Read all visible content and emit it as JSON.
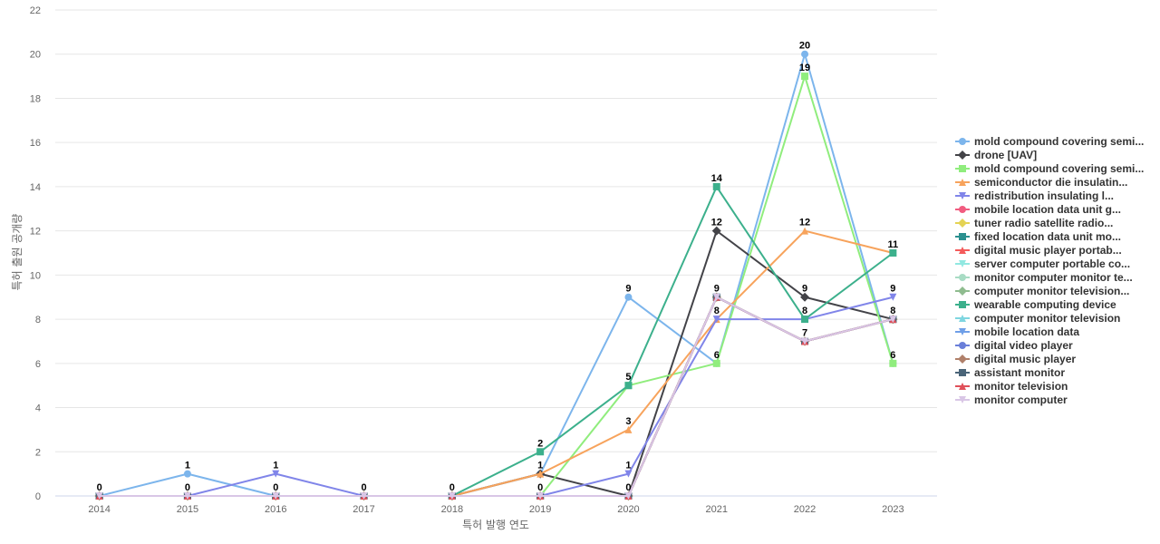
{
  "chart_data": {
    "type": "line",
    "xlabel": "특허 발행 연도",
    "ylabel": "특허 출원 공개량",
    "ylim": [
      0,
      22
    ],
    "yticks": [
      "0",
      "2",
      "4",
      "6",
      "8",
      "10",
      "12",
      "14",
      "16",
      "18",
      "20",
      "22"
    ],
    "categories": [
      "2014",
      "2015",
      "2016",
      "2017",
      "2018",
      "2019",
      "2020",
      "2021",
      "2022",
      "2023"
    ],
    "grid": true,
    "legend_position": "right",
    "series": [
      {
        "name": "mold compound covering semi...",
        "color": "#7cb5ec",
        "marker": "circle",
        "values": [
          0,
          1,
          0,
          0,
          0,
          1,
          9,
          6,
          20,
          6
        ]
      },
      {
        "name": "drone [UAV]",
        "color": "#434348",
        "marker": "diamond",
        "values": [
          0,
          0,
          0,
          0,
          0,
          1,
          0,
          12,
          9,
          8
        ]
      },
      {
        "name": "mold compound covering semi...",
        "color": "#90ed7d",
        "marker": "square",
        "values": [
          0,
          0,
          0,
          0,
          0,
          0,
          5,
          6,
          19,
          6
        ]
      },
      {
        "name": "semiconductor die insulatin...",
        "color": "#f7a35c",
        "marker": "triangle",
        "values": [
          0,
          0,
          0,
          0,
          0,
          1,
          3,
          8,
          12,
          11
        ]
      },
      {
        "name": "redistribution insulating l...",
        "color": "#8085e9",
        "marker": "triangle-down",
        "values": [
          0,
          0,
          1,
          0,
          0,
          0,
          1,
          8,
          8,
          9
        ]
      },
      {
        "name": "mobile location data unit g...",
        "color": "#f15c80",
        "marker": "circle",
        "values": [
          0,
          0,
          0,
          0,
          0,
          0,
          0,
          9,
          7,
          8
        ]
      },
      {
        "name": "tuner radio satellite radio...",
        "color": "#e4d354",
        "marker": "diamond",
        "values": [
          0,
          0,
          0,
          0,
          0,
          0,
          0,
          9,
          7,
          8
        ]
      },
      {
        "name": "fixed location data unit mo...",
        "color": "#2b908f",
        "marker": "square",
        "values": [
          0,
          0,
          0,
          0,
          0,
          0,
          0,
          9,
          7,
          8
        ]
      },
      {
        "name": "digital music player portab...",
        "color": "#f45b5b",
        "marker": "triangle",
        "values": [
          0,
          0,
          0,
          0,
          0,
          0,
          0,
          9,
          7,
          8
        ]
      },
      {
        "name": "server computer portable co...",
        "color": "#91e8e1",
        "marker": "triangle-down",
        "values": [
          0,
          0,
          0,
          0,
          0,
          0,
          0,
          9,
          7,
          8
        ]
      },
      {
        "name": "monitor computer monitor te...",
        "color": "#a8dcc4",
        "marker": "circle",
        "values": [
          0,
          0,
          0,
          0,
          0,
          0,
          0,
          9,
          7,
          8
        ]
      },
      {
        "name": "computer monitor television...",
        "color": "#8fbc8f",
        "marker": "diamond",
        "values": [
          0,
          0,
          0,
          0,
          0,
          0,
          0,
          9,
          7,
          8
        ]
      },
      {
        "name": "wearable computing device",
        "color": "#3cb08c",
        "marker": "square",
        "values": [
          0,
          0,
          0,
          0,
          0,
          2,
          5,
          14,
          8,
          11
        ]
      },
      {
        "name": "computer monitor television",
        "color": "#7fd6e0",
        "marker": "triangle",
        "values": [
          0,
          0,
          0,
          0,
          0,
          0,
          0,
          9,
          7,
          8
        ]
      },
      {
        "name": "mobile location data",
        "color": "#6f9fe8",
        "marker": "triangle-down",
        "values": [
          0,
          0,
          0,
          0,
          0,
          0,
          0,
          9,
          7,
          8
        ]
      },
      {
        "name": "digital video player",
        "color": "#6a7fd9",
        "marker": "circle",
        "values": [
          0,
          0,
          0,
          0,
          0,
          0,
          0,
          9,
          7,
          8
        ]
      },
      {
        "name": "digital music player",
        "color": "#b0806a",
        "marker": "diamond",
        "values": [
          0,
          0,
          0,
          0,
          0,
          0,
          0,
          9,
          7,
          8
        ]
      },
      {
        "name": "assistant monitor",
        "color": "#4a6478",
        "marker": "square",
        "values": [
          0,
          0,
          0,
          0,
          0,
          0,
          0,
          9,
          7,
          8
        ]
      },
      {
        "name": "monitor television",
        "color": "#e0505a",
        "marker": "triangle",
        "values": [
          0,
          0,
          0,
          0,
          0,
          0,
          0,
          9,
          7,
          8
        ]
      },
      {
        "name": "monitor computer",
        "color": "#d9c6e6",
        "marker": "triangle-down",
        "values": [
          0,
          0,
          0,
          0,
          0,
          0,
          0,
          9,
          7,
          8
        ]
      }
    ],
    "data_labels": [
      {
        "x": "2014",
        "text": "0",
        "value": 0
      },
      {
        "x": "2015",
        "text": "1",
        "value": 1
      },
      {
        "x": "2015",
        "text": "0",
        "value": 0
      },
      {
        "x": "2016",
        "text": "1",
        "value": 1
      },
      {
        "x": "2016",
        "text": "0",
        "value": 0
      },
      {
        "x": "2017",
        "text": "0",
        "value": 0
      },
      {
        "x": "2018",
        "text": "0",
        "value": 0
      },
      {
        "x": "2019",
        "text": "2",
        "value": 2
      },
      {
        "x": "2019",
        "text": "1",
        "value": 1
      },
      {
        "x": "2019",
        "text": "0",
        "value": 0
      },
      {
        "x": "2020",
        "text": "9",
        "value": 9
      },
      {
        "x": "2020",
        "text": "5",
        "value": 5
      },
      {
        "x": "2020",
        "text": "3",
        "value": 3
      },
      {
        "x": "2020",
        "text": "1",
        "value": 1
      },
      {
        "x": "2020",
        "text": "0",
        "value": 0
      },
      {
        "x": "2021",
        "text": "14",
        "value": 14
      },
      {
        "x": "2021",
        "text": "12",
        "value": 12
      },
      {
        "x": "2021",
        "text": "9",
        "value": 9
      },
      {
        "x": "2021",
        "text": "8",
        "value": 8
      },
      {
        "x": "2021",
        "text": "6",
        "value": 6
      },
      {
        "x": "2022",
        "text": "20",
        "value": 20
      },
      {
        "x": "2022",
        "text": "19",
        "value": 19
      },
      {
        "x": "2022",
        "text": "12",
        "value": 12
      },
      {
        "x": "2022",
        "text": "9",
        "value": 9
      },
      {
        "x": "2022",
        "text": "8",
        "value": 8
      },
      {
        "x": "2022",
        "text": "7",
        "value": 7
      },
      {
        "x": "2023",
        "text": "11",
        "value": 11
      },
      {
        "x": "2023",
        "text": "9",
        "value": 9
      },
      {
        "x": "2023",
        "text": "8",
        "value": 8
      },
      {
        "x": "2023",
        "text": "6",
        "value": 6
      }
    ]
  }
}
